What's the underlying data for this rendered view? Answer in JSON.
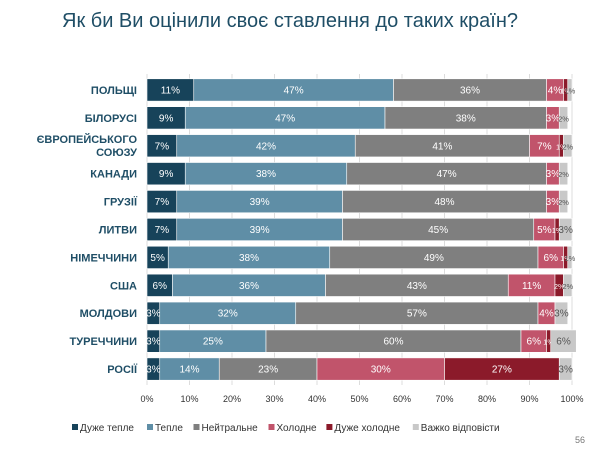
{
  "chart_data": {
    "type": "bar",
    "orientation": "horizontal",
    "stacked": true,
    "title": "Як би Ви оцінили своє ставлення до таких країн?",
    "categories": [
      "ПОЛЬЩІ",
      "БІЛОРУСІ",
      "ЄВРОПЕЙСЬКОГО СОЮЗУ",
      "КАНАДИ",
      "ГРУЗІЇ",
      "ЛИТВИ",
      "НІМЕЧЧИНИ",
      "США",
      "МОЛДОВИ",
      "ТУРЕЧЧИНИ",
      "РОСІЇ"
    ],
    "category_lines": [
      [
        "ПОЛЬЩІ"
      ],
      [
        "БІЛОРУСІ"
      ],
      [
        "ЄВРОПЕЙСЬКОГО",
        "СОЮЗУ"
      ],
      [
        "КАНАДИ"
      ],
      [
        "ГРУЗІЇ"
      ],
      [
        "ЛИТВИ"
      ],
      [
        "НІМЕЧЧИНИ"
      ],
      [
        "США"
      ],
      [
        "МОЛДОВИ"
      ],
      [
        "ТУРЕЧЧИНИ"
      ],
      [
        "РОСІЇ"
      ]
    ],
    "series": [
      {
        "name": "Дуже тепле",
        "color": "#17435a",
        "values": [
          11,
          9,
          7,
          9,
          7,
          7,
          5,
          6,
          3,
          3,
          3
        ]
      },
      {
        "name": "Тепле",
        "color": "#5f8ea6",
        "values": [
          47,
          47,
          42,
          38,
          39,
          39,
          38,
          36,
          32,
          25,
          14
        ]
      },
      {
        "name": "Нейтральне",
        "color": "#7f7f7f",
        "values": [
          36,
          38,
          41,
          47,
          48,
          45,
          49,
          43,
          57,
          60,
          23
        ]
      },
      {
        "name": "Холодне",
        "color": "#c1546b",
        "values": [
          4,
          3,
          7,
          3,
          3,
          5,
          6,
          11,
          4,
          6,
          30
        ]
      },
      {
        "name": "Дуже холодне",
        "color": "#8b1a2a",
        "values": [
          1,
          0,
          1,
          0,
          0,
          1,
          1,
          2,
          0,
          1,
          27
        ]
      },
      {
        "name": "Важко відповісти",
        "color": "#c8c8c8",
        "values": [
          1,
          2,
          2,
          2,
          2,
          3,
          1,
          2,
          3,
          6,
          3
        ]
      }
    ],
    "xlim": [
      0,
      100
    ],
    "x_ticks": [
      "0%",
      "10%",
      "20%",
      "30%",
      "40%",
      "50%",
      "60%",
      "70%",
      "80%",
      "90%",
      "100%"
    ],
    "legend_position": "bottom"
  },
  "page_number": "56"
}
